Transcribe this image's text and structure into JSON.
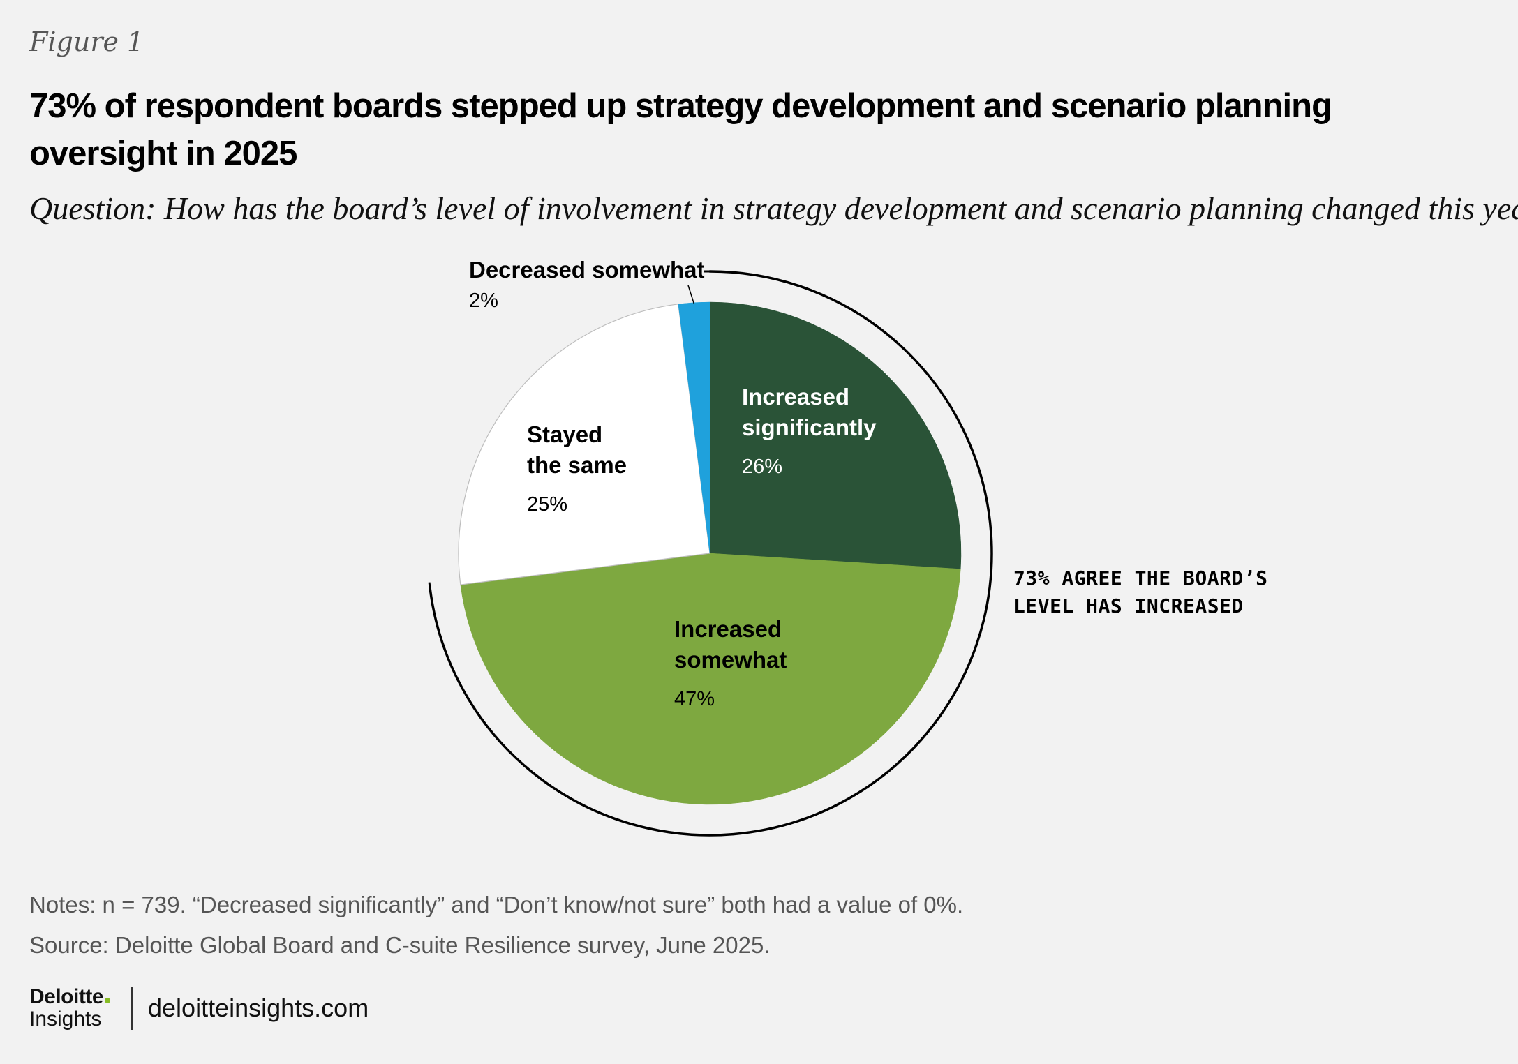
{
  "figure_label": "Figure 1",
  "title": "73% of respondent boards stepped up strategy development and scenario planning oversight in 2025",
  "question": "Question: How has the board’s level of involvement in strategy development and scenario planning changed this year?",
  "chart_data": {
    "type": "pie",
    "slices": [
      {
        "label": "Increased significantly",
        "value": 26,
        "value_label": "26%",
        "color": "#2a5337",
        "text_color": "#ffffff"
      },
      {
        "label": "Increased somewhat",
        "value": 47,
        "value_label": "47%",
        "color": "#7ea840",
        "text_color": "#000000"
      },
      {
        "label": "Stayed the same",
        "value": 25,
        "value_label": "25%",
        "color": "#ffffff",
        "text_color": "#000000"
      },
      {
        "label": "Decreased somewhat",
        "value": 2,
        "value_label": "2%",
        "color": "#1fa1dc",
        "text_color": "#000000"
      }
    ],
    "annotation": {
      "text": "73% AGREE THE BOARD’S LEVEL HAS INCREASED",
      "spans": [
        "Increased significantly",
        "Increased somewhat"
      ]
    }
  },
  "notes": "Notes: n = 739. “Decreased significantly” and “Don’t know/not sure” both had a value of 0%.",
  "source": "Source: Deloitte Global Board and C-suite Resilience survey, June 2025.",
  "footer": {
    "brand": "Deloitte",
    "sub_brand": "Insights",
    "site": "deloitteinsights.com"
  }
}
